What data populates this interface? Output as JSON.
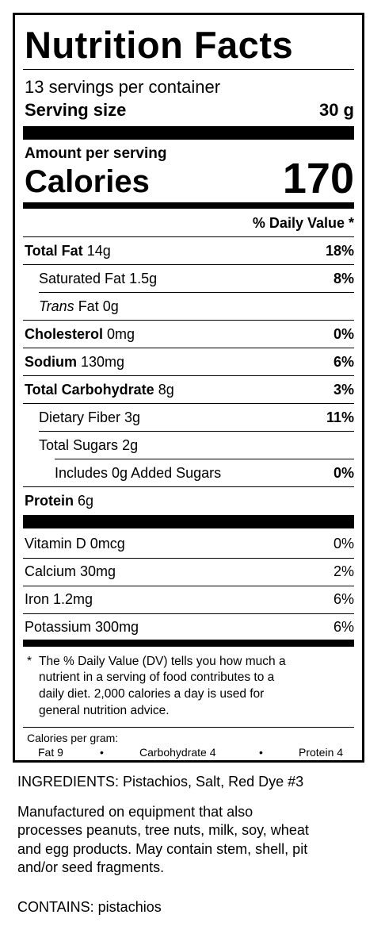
{
  "title": "Nutrition Facts",
  "servings_per_container": "13 servings per container",
  "serving_size_label": "Serving size",
  "serving_size_value": "30 g",
  "amount_per_serving": "Amount per serving",
  "calories_label": "Calories",
  "calories_value": "170",
  "dv_header": "% Daily Value *",
  "nutrients": [
    {
      "name": "Total Fat",
      "amount": "14g",
      "dv": "18%"
    },
    {
      "name": "Saturated Fat",
      "amount": "1.5g",
      "dv": "8%"
    },
    {
      "name": "Trans",
      "name_rest": " Fat 0g",
      "dv": ""
    },
    {
      "name": "Cholesterol",
      "amount": "0mg",
      "dv": "0%"
    },
    {
      "name": "Sodium",
      "amount": "130mg",
      "dv": "6%"
    },
    {
      "name": "Total Carbohydrate",
      "amount": "8g",
      "dv": "3%"
    },
    {
      "name": "Dietary Fiber",
      "amount": "3g",
      "dv": "11%"
    },
    {
      "name": "Total Sugars",
      "amount": "2g",
      "dv": ""
    },
    {
      "name": "Includes 0g Added Sugars",
      "amount": "",
      "dv": "0%"
    },
    {
      "name": "Protein",
      "amount": "6g",
      "dv": ""
    }
  ],
  "vitamins": [
    {
      "name": "Vitamin D 0mcg",
      "dv": "0%"
    },
    {
      "name": "Calcium 30mg",
      "dv": "2%"
    },
    {
      "name": "Iron 1.2mg",
      "dv": "6%"
    },
    {
      "name": "Potassium 300mg",
      "dv": "6%"
    }
  ],
  "footnote_star": "*",
  "footnote": [
    "The % Daily Value (DV) tells you how much a",
    "nutrient in a serving of food contributes to a",
    "daily diet. 2,000 calories a day is used for",
    "general nutrition advice."
  ],
  "calories_per_gram": "Calories per gram:",
  "cpg_fat": "Fat 9",
  "cpg_carb": "Carbohydrate 4",
  "cpg_protein": "Protein 4",
  "bullet": "•",
  "ingredients": "INGREDIENTS: Pistachios, Salt, Red Dye #3",
  "manufactured": [
    "Manufactured on equipment that also",
    "processes peanuts, tree nuts, milk, soy, wheat",
    "and egg products.  May contain stem, shell, pit",
    "and/or seed fragments."
  ],
  "contains": "CONTAINS: pistachios"
}
